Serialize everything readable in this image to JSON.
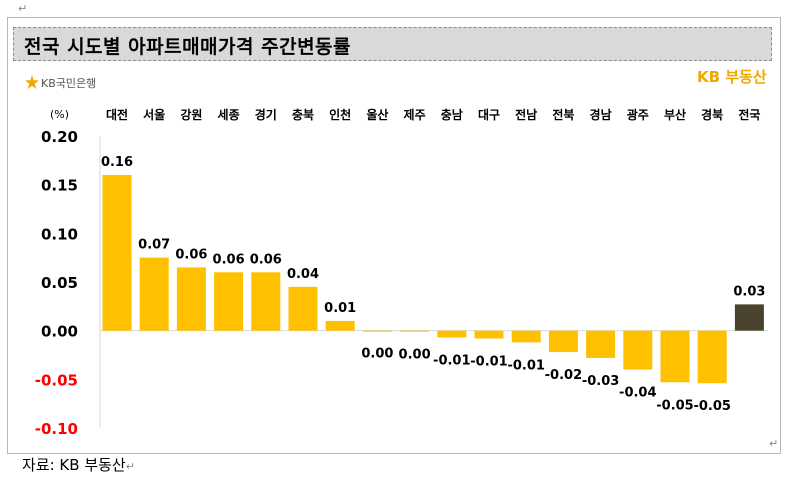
{
  "document": {
    "title": "전국 시도별 아파트매매가격 주간변동률",
    "source": "자료: KB 부동산",
    "brand_left": "KB국민은행",
    "brand_right": "KB 부동산"
  },
  "colors": {
    "bar": "#ffc000",
    "highlight_bar": "#48422f",
    "negative_tick": "#ff0000",
    "axis": "#d9d9d9",
    "title_band": "#d9d9d9"
  },
  "chart_data": {
    "type": "bar",
    "unit_label": "(%)",
    "categories": [
      "대전",
      "서울",
      "강원",
      "세종",
      "경기",
      "충북",
      "인천",
      "울산",
      "제주",
      "충남",
      "대구",
      "전남",
      "전북",
      "경남",
      "광주",
      "부산",
      "경북",
      "전국"
    ],
    "values": [
      0.16,
      0.075,
      0.065,
      0.06,
      0.06,
      0.045,
      0.01,
      0.0,
      -0.001,
      -0.007,
      -0.008,
      -0.012,
      -0.022,
      -0.028,
      -0.04,
      -0.053,
      -0.054,
      0.027
    ],
    "data_labels": [
      "0.16",
      "0.07",
      "0.06",
      "0.06",
      "0.06",
      "0.04",
      "0.01",
      "0.00",
      "0.00",
      "-0.01",
      "-0.01",
      "-0.01",
      "-0.02",
      "-0.03",
      "-0.04",
      "-0.05",
      "-0.05",
      "0.03"
    ],
    "highlight_category": "전국",
    "yticks": [
      "0.20",
      "0.15",
      "0.10",
      "0.05",
      "0.00",
      "-0.05",
      "-0.10"
    ],
    "ylim": [
      -0.1,
      0.2
    ],
    "grid": false,
    "legend": "none",
    "category_axis_position": "top"
  }
}
